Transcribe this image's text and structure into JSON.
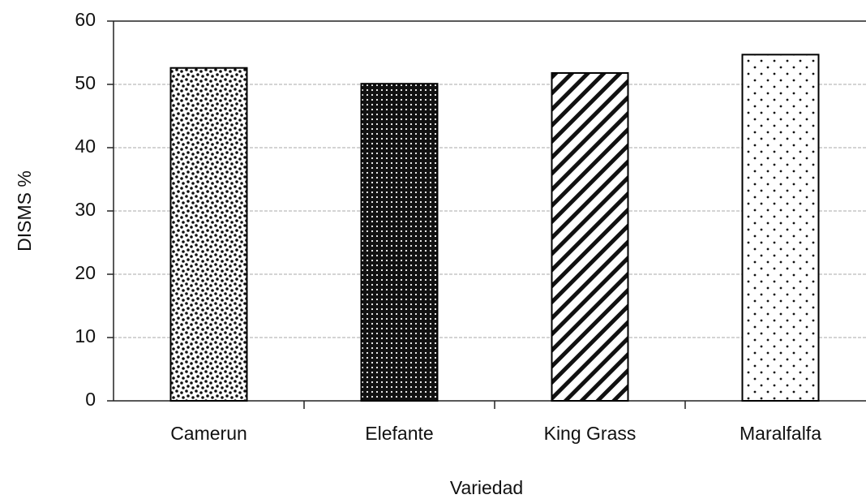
{
  "chart_data": {
    "type": "bar",
    "xlabel": "Variedad",
    "ylabel": "DISMS %",
    "categories": [
      "Camerun",
      "Elefante",
      "King Grass",
      "Maralfalfa"
    ],
    "values": [
      52.6,
      50.1,
      51.8,
      54.7
    ],
    "color": "#000000",
    "ylim": [
      0,
      60
    ],
    "yticks": [
      0,
      10,
      20,
      30,
      40,
      50,
      60
    ],
    "grid": true
  }
}
